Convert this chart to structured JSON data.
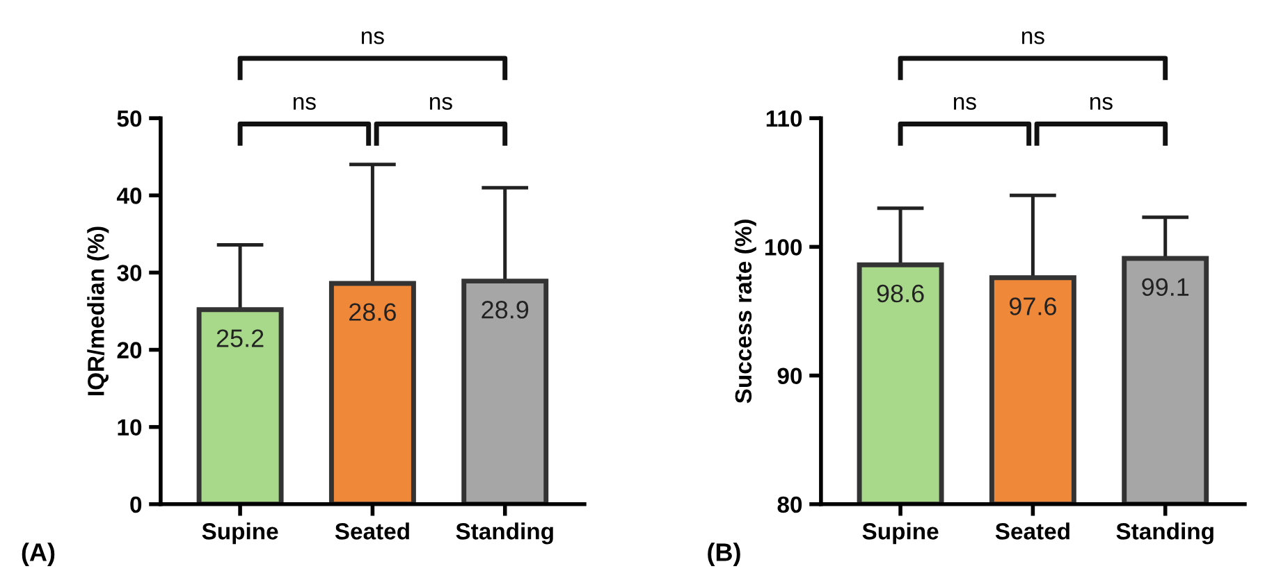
{
  "chart_data": [
    {
      "type": "bar",
      "ylabel": "IQR/median (%)",
      "categories": [
        "Supine",
        "Seated",
        "Standing"
      ],
      "values": [
        25.2,
        28.6,
        28.9
      ],
      "colors": [
        "#a8d98a",
        "#f0883a",
        "#a6a6a6"
      ],
      "errors": [
        [
          25.2,
          33.6
        ],
        [
          28.6,
          44.0
        ],
        [
          28.9,
          41.0
        ]
      ],
      "ylim": [
        0,
        50
      ],
      "yticks": [
        0,
        10,
        20,
        30,
        40,
        50
      ],
      "data_labels": true,
      "grid": false,
      "legend": false,
      "annotations": [
        "ns",
        "ns",
        "ns",
        "(A)"
      ]
    },
    {
      "type": "bar",
      "ylabel": "Success rate (%)",
      "categories": [
        "Supine",
        "Seated",
        "Standing"
      ],
      "values": [
        98.6,
        97.6,
        99.1
      ],
      "colors": [
        "#a8d98a",
        "#f0883a",
        "#a6a6a6"
      ],
      "errors": [
        [
          98.6,
          103.0
        ],
        [
          97.6,
          104.0
        ],
        [
          99.1,
          102.3
        ]
      ],
      "ylim": [
        80,
        110
      ],
      "yticks": [
        80,
        90,
        100,
        110
      ],
      "data_labels": true,
      "grid": false,
      "legend": false,
      "annotations": [
        "ns",
        "ns",
        "ns",
        "(B)"
      ]
    }
  ]
}
